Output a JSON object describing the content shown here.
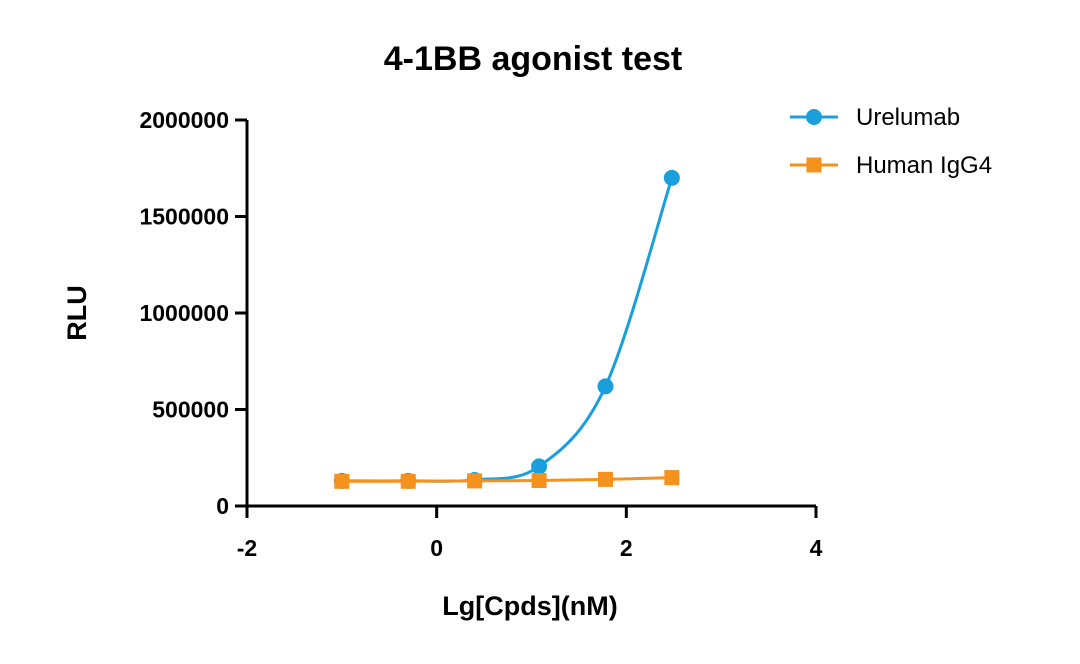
{
  "chart_data": {
    "type": "line",
    "title": "4-1BB agonist test",
    "xlabel": "Lg[Cpds](nM)",
    "ylabel": "RLU",
    "xlim": [
      -2,
      4
    ],
    "ylim": [
      0,
      2000000
    ],
    "xticks": [
      "-2",
      "0",
      "2",
      "4"
    ],
    "yticks": [
      "0",
      "500000",
      "1000000",
      "1500000",
      "2000000"
    ],
    "grid": false,
    "legend_position": "top-right",
    "series": [
      {
        "name": "Urelumab",
        "color": "#1a9fdc",
        "marker": "circle",
        "x": [
          -1.0,
          -0.3,
          0.4,
          1.08,
          1.78,
          2.48
        ],
        "y": [
          130000,
          130000,
          135000,
          205000,
          620000,
          1700000
        ],
        "fit_curve": true
      },
      {
        "name": "Human IgG4",
        "color": "#f5921e",
        "marker": "square",
        "x": [
          -1.0,
          -0.3,
          0.4,
          1.08,
          1.78,
          2.48
        ],
        "y": [
          128000,
          128000,
          130000,
          132000,
          138000,
          147000
        ],
        "fit_curve": false
      }
    ]
  }
}
